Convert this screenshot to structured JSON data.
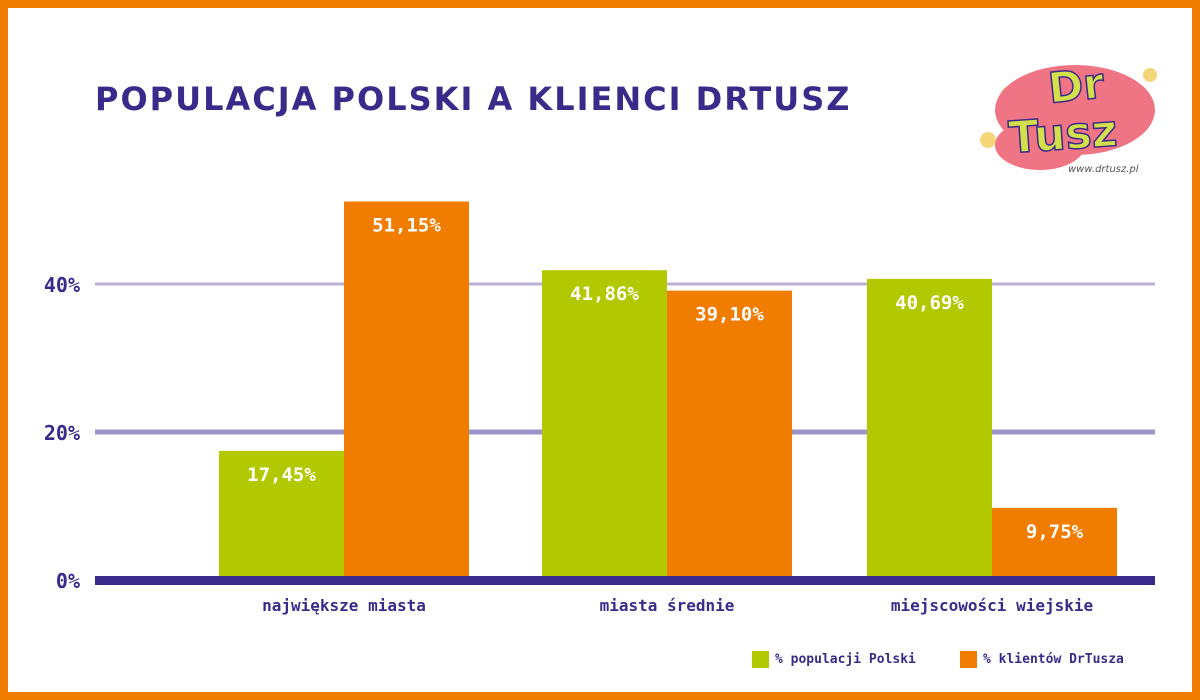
{
  "logo": {
    "line1": "Dr",
    "line2": "Tusz",
    "url": "www.drtusz.pl"
  },
  "colors": {
    "frame": "#f07c00",
    "title": "#3a2a8a",
    "green": "#b2c800",
    "orange": "#f07c00",
    "grid": "#b9b0d6",
    "axis": "#3a2a8a"
  },
  "chart_data": {
    "type": "bar",
    "title": "POPULACJA POLSKI A KLIENCI DRTUSZ",
    "categories": [
      "największe miasta",
      "miasta średnie",
      "miejscowości wiejskie"
    ],
    "series": [
      {
        "name": "% populacji Polski",
        "color": "#b2c800",
        "values": [
          17.45,
          41.86,
          40.69
        ],
        "labels": [
          "17,45%",
          "41,86%",
          "40,69%"
        ]
      },
      {
        "name": "% klientów DrTusza",
        "color": "#f07c00",
        "values": [
          51.15,
          39.1,
          9.75
        ],
        "labels": [
          "51,15%",
          "39,10%",
          "9,75%"
        ]
      }
    ],
    "y_ticks": [
      0,
      20,
      40
    ],
    "y_tick_labels": [
      "0%",
      "20%",
      "40%"
    ],
    "ylim": [
      0,
      55
    ],
    "grid": true,
    "legend_position": "bottom-right"
  }
}
